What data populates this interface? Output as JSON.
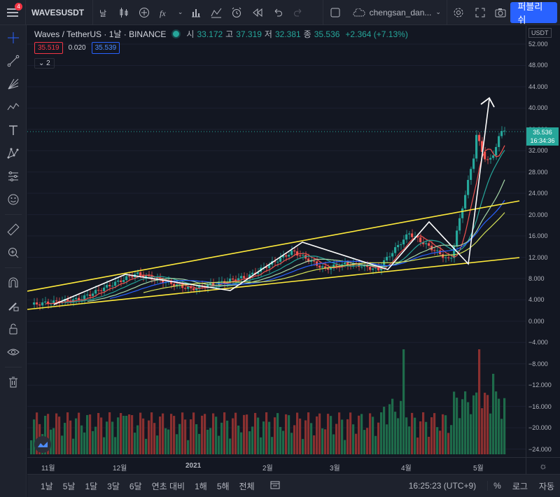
{
  "toolbar": {
    "notification_count": "4",
    "symbol": "WAVESUSDT",
    "layout_name": "chengsan_dan...",
    "publish_label": "퍼블리쉬"
  },
  "legend": {
    "title": "Waves / TetherUS · 1날 · BINANCE",
    "open_label": "시",
    "open_value": "33.172",
    "high_label": "고",
    "high_value": "37.319",
    "low_label": "저",
    "low_value": "32.381",
    "close_label": "종",
    "close_value": "35.536",
    "change": "+2.364 (+7.13%)",
    "bid": "35.519",
    "spread": "0.020",
    "ask": "35.539",
    "indicator_count": "2"
  },
  "price_axis": {
    "currency": "USDT",
    "labels": [
      "52.000",
      "48.000",
      "44.000",
      "40.000",
      "36.000",
      "32.000",
      "28.000",
      "24.000",
      "20.000",
      "16.000",
      "12.000",
      "8.000",
      "4.000",
      "0.000",
      "−4.000",
      "−8.000",
      "−12.000",
      "−16.000",
      "−20.000",
      "−24.000"
    ],
    "last_price": "35.536",
    "countdown": "16:34:36"
  },
  "time_axis": {
    "labels": [
      "11월",
      "12월",
      "2021",
      "2월",
      "3월",
      "4월",
      "5월"
    ]
  },
  "bottombar": {
    "ranges": [
      "1날",
      "5날",
      "1달",
      "3달",
      "6달",
      "연초 대비",
      "1해",
      "5해",
      "전체"
    ],
    "clock": "16:25:23 (UTC+9)",
    "percent": "%",
    "log": "로그",
    "auto": "자동"
  },
  "colors": {
    "up": "#26a69a",
    "down": "#ef5350",
    "trendline": "#ffeb3b",
    "pattern": "#ffffff",
    "accent": "#2962ff"
  }
}
